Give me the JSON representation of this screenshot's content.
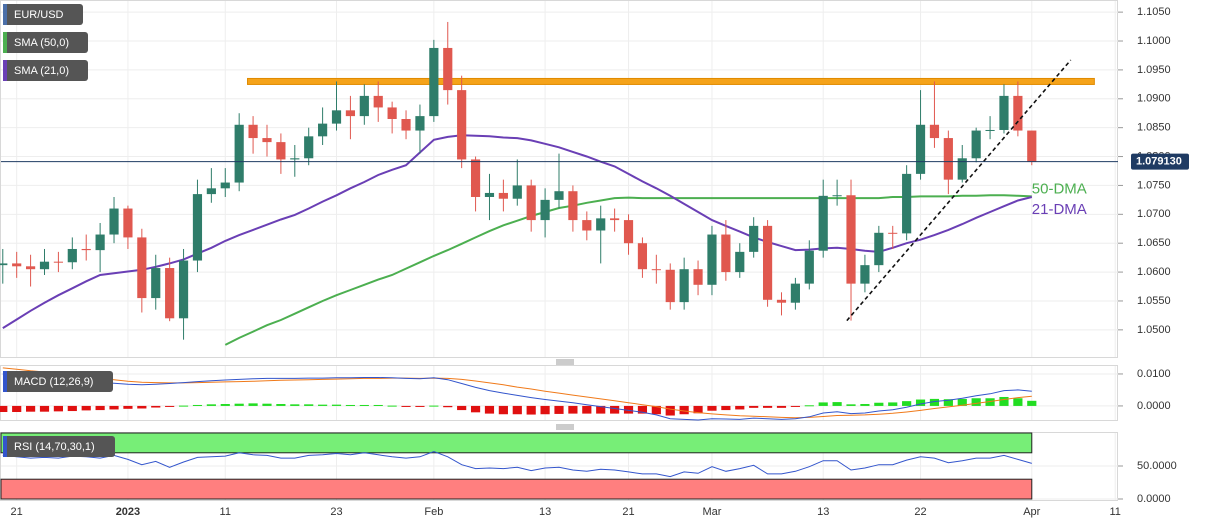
{
  "chart_data": [
    {
      "type": "candlestick",
      "title": "EUR/USD",
      "up_color": "#2f7d6a",
      "down_color": "#e0584f",
      "xlim": [
        -0.2,
        80.2
      ],
      "xticks": [
        {
          "value": 1,
          "label": "21"
        },
        {
          "value": 9,
          "label": "2023"
        },
        {
          "value": 16,
          "label": "11"
        },
        {
          "value": 24,
          "label": "23"
        },
        {
          "value": 31,
          "label": "Feb"
        },
        {
          "value": 39,
          "label": "13"
        },
        {
          "value": 45,
          "label": "21"
        },
        {
          "value": 51,
          "label": "Mar"
        },
        {
          "value": 59,
          "label": "13"
        },
        {
          "value": 66,
          "label": "22"
        },
        {
          "value": 74,
          "label": "Apr"
        },
        {
          "value": 80,
          "label": "11"
        }
      ],
      "ylim": [
        1.0453,
        1.1071
      ],
      "yticks": [
        {
          "value": 1.05,
          "label": "1.0500"
        },
        {
          "value": 1.055,
          "label": "1.0550"
        },
        {
          "value": 1.06,
          "label": "1.0600"
        },
        {
          "value": 1.065,
          "label": "1.0650"
        },
        {
          "value": 1.07,
          "label": "1.0700"
        },
        {
          "value": 1.075,
          "label": "1.0750"
        },
        {
          "value": 1.08,
          "label": "1.0800"
        },
        {
          "value": 1.085,
          "label": "1.0850"
        },
        {
          "value": 1.09,
          "label": "1.0900"
        },
        {
          "value": 1.095,
          "label": "1.0950"
        },
        {
          "value": 1.1,
          "label": "1.1000"
        },
        {
          "value": 1.105,
          "label": "1.1050"
        }
      ],
      "open": [
        1.0612,
        1.0615,
        1.061,
        1.0605,
        1.0618,
        1.0617,
        1.064,
        1.0638,
        1.0665,
        1.071,
        1.066,
        1.0555,
        1.0607,
        1.052,
        1.062,
        1.0735,
        1.0745,
        1.0755,
        1.0855,
        1.0832,
        1.0825,
        1.0795,
        1.0797,
        1.0835,
        1.0857,
        1.088,
        1.087,
        1.0905,
        1.0885,
        1.0865,
        1.0845,
        1.087,
        1.0988,
        1.0915,
        1.0795,
        1.073,
        1.0737,
        1.0727,
        1.075,
        1.069,
        1.0725,
        1.074,
        1.069,
        1.0672,
        1.0693,
        1.069,
        1.065,
        1.0605,
        1.0604,
        1.0548,
        1.0605,
        1.0578,
        1.0665,
        1.06,
        1.0635,
        1.068,
        1.0552,
        1.0547,
        1.058,
        1.0637,
        1.0732,
        1.0733,
        1.058,
        1.0612,
        1.0668,
        1.0667,
        1.077,
        1.0855,
        1.0832,
        1.076,
        1.0797,
        1.0845,
        1.0846,
        1.0905,
        1.0845
      ],
      "high": [
        1.064,
        1.0635,
        1.063,
        1.064,
        1.0635,
        1.066,
        1.0665,
        1.0685,
        1.073,
        1.0715,
        1.0675,
        1.063,
        1.0625,
        1.064,
        1.076,
        1.078,
        1.078,
        1.0875,
        1.087,
        1.0855,
        1.084,
        1.082,
        1.085,
        1.0885,
        1.093,
        1.0905,
        1.0925,
        1.093,
        1.0895,
        1.088,
        1.089,
        1.1002,
        1.1033,
        1.094,
        1.08,
        1.077,
        1.076,
        1.0795,
        1.076,
        1.0745,
        1.0805,
        1.075,
        1.0705,
        1.0715,
        1.071,
        1.07,
        1.066,
        1.063,
        1.0615,
        1.0625,
        1.062,
        1.068,
        1.069,
        1.065,
        1.0695,
        1.069,
        1.0565,
        1.059,
        1.0655,
        1.076,
        1.076,
        1.076,
        1.063,
        1.068,
        1.068,
        1.0785,
        1.0915,
        1.093,
        1.0845,
        1.082,
        1.085,
        1.087,
        1.0925,
        1.093,
        1.0845
      ],
      "low": [
        1.058,
        1.059,
        1.0575,
        1.0595,
        1.06,
        1.0605,
        1.062,
        1.06,
        1.065,
        1.064,
        1.053,
        1.0535,
        1.0515,
        1.0483,
        1.06,
        1.072,
        1.073,
        1.074,
        1.0805,
        1.08,
        1.077,
        1.0765,
        1.0785,
        1.082,
        1.0845,
        1.083,
        1.0855,
        1.086,
        1.084,
        1.083,
        1.0805,
        1.086,
        1.089,
        1.078,
        1.0705,
        1.069,
        1.0705,
        1.0715,
        1.067,
        1.066,
        1.071,
        1.067,
        1.0655,
        1.0615,
        1.067,
        1.063,
        1.059,
        1.058,
        1.0535,
        1.0535,
        1.056,
        1.056,
        1.0585,
        1.059,
        1.0625,
        1.054,
        1.0525,
        1.0535,
        1.057,
        1.0625,
        1.0715,
        1.0516,
        1.0565,
        1.06,
        1.064,
        1.0655,
        1.076,
        1.0815,
        1.0735,
        1.0755,
        1.079,
        1.083,
        1.084,
        1.0835,
        1.0785
      ],
      "close": [
        1.0615,
        1.061,
        1.0605,
        1.0618,
        1.0617,
        1.064,
        1.0638,
        1.0665,
        1.071,
        1.066,
        1.0555,
        1.0607,
        1.052,
        1.062,
        1.0735,
        1.0745,
        1.0755,
        1.0855,
        1.0832,
        1.0825,
        1.0795,
        1.0797,
        1.0835,
        1.0857,
        1.088,
        1.087,
        1.0905,
        1.0885,
        1.0865,
        1.0845,
        1.087,
        1.0988,
        1.0915,
        1.0795,
        1.073,
        1.0737,
        1.0727,
        1.075,
        1.069,
        1.0725,
        1.074,
        1.069,
        1.0672,
        1.0693,
        1.069,
        1.065,
        1.0605,
        1.0604,
        1.0548,
        1.0605,
        1.0578,
        1.0665,
        1.06,
        1.0635,
        1.068,
        1.0552,
        1.0547,
        1.058,
        1.0637,
        1.0732,
        1.0733,
        1.058,
        1.0612,
        1.0668,
        1.0667,
        1.077,
        1.0855,
        1.0832,
        1.076,
        1.0797,
        1.0845,
        1.0846,
        1.0905,
        1.0845,
        1.07913
      ],
      "last_price": {
        "value": 1.07913,
        "label": "1.079130"
      },
      "series": [
        {
          "name": "SMA (50,0)",
          "label": "50-DMA",
          "color": "#4caf50",
          "values": [
            null,
            null,
            null,
            null,
            null,
            null,
            null,
            null,
            null,
            null,
            null,
            null,
            null,
            null,
            null,
            null,
            1.0474,
            1.0486,
            1.0497,
            1.0508,
            1.0517,
            1.0528,
            1.0539,
            1.055,
            1.056,
            1.0569,
            1.0578,
            1.0587,
            1.0595,
            1.0606,
            1.0617,
            1.0628,
            1.0638,
            1.0649,
            1.066,
            1.0671,
            1.0681,
            1.0689,
            1.0697,
            1.0704,
            1.0711,
            1.0715,
            1.072,
            1.0724,
            1.0728,
            1.0729,
            1.0728,
            1.0728,
            1.0728,
            1.0728,
            1.0728,
            1.0728,
            1.0728,
            1.0728,
            1.0728,
            1.0728,
            1.0728,
            1.0728,
            1.0728,
            1.0728,
            1.0728,
            1.0728,
            1.0728,
            1.0728,
            1.073,
            1.073,
            1.0731,
            1.0731,
            1.0731,
            1.0732,
            1.0732,
            1.0733,
            1.0733,
            1.0732,
            1.0731
          ]
        },
        {
          "name": "SMA (21,0)",
          "label": "21-DMA",
          "color": "#6a3fb5",
          "values": [
            1.0503,
            1.0518,
            1.0533,
            1.0547,
            1.056,
            1.0572,
            1.0584,
            1.0595,
            1.0598,
            1.0601,
            1.0604,
            1.0609,
            1.0615,
            1.0622,
            1.0632,
            1.0642,
            1.0654,
            1.0664,
            1.0673,
            1.0682,
            1.0691,
            1.0699,
            1.071,
            1.0722,
            1.0733,
            1.0745,
            1.0756,
            1.0768,
            1.0777,
            1.0785,
            1.0807,
            1.0829,
            1.0834,
            1.0837,
            1.0836,
            1.0835,
            1.0833,
            1.0832,
            1.0828,
            1.0822,
            1.0816,
            1.0808,
            1.08,
            1.0791,
            1.0783,
            1.077,
            1.0757,
            1.0745,
            1.0732,
            1.0718,
            1.0704,
            1.069,
            1.068,
            1.067,
            1.066,
            1.0652,
            1.0645,
            1.0638,
            1.0639,
            1.0641,
            1.0642,
            1.064,
            1.0637,
            1.0635,
            1.0642,
            1.065,
            1.0656,
            1.0664,
            1.0673,
            1.0683,
            1.0694,
            1.0704,
            1.0714,
            1.0724,
            1.073
          ]
        }
      ],
      "resistance": {
        "value": 1.093,
        "start": 17.6,
        "end": 78.5,
        "color": "#f5a31a"
      },
      "trendline": {
        "x": [
          60.7,
          76.8
        ],
        "y": [
          1.0516,
          1.0967
        ],
        "color": "#111111"
      }
    },
    {
      "type": "macd",
      "title": "MACD (12,26,9)",
      "ylim": [
        -0.0044,
        0.0128
      ],
      "yticks": [
        {
          "value": 0,
          "label": "0.0000"
        },
        {
          "value": 0.01,
          "label": "0.0100"
        }
      ],
      "macd_color": "#3355cc",
      "signal_color": "#f07a1a",
      "up_color": "#22dd22",
      "down_color": "#e01010",
      "macd": [
        0.01,
        0.0096,
        0.0092,
        0.0088,
        0.0084,
        0.008,
        0.0077,
        0.0074,
        0.0071,
        0.0068,
        0.0066,
        0.0068,
        0.007,
        0.0073,
        0.0076,
        0.0079,
        0.0081,
        0.0083,
        0.0085,
        0.0086,
        0.0086,
        0.0086,
        0.0087,
        0.0087,
        0.0088,
        0.0088,
        0.0089,
        0.0089,
        0.0088,
        0.0086,
        0.0085,
        0.0088,
        0.0082,
        0.007,
        0.0058,
        0.0048,
        0.004,
        0.0033,
        0.0026,
        0.002,
        0.0015,
        0.001,
        0.0004,
        -0.0002,
        -0.0008,
        -0.0014,
        -0.002,
        -0.0028,
        -0.004,
        -0.0042,
        -0.0044,
        -0.004,
        -0.0041,
        -0.0042,
        -0.0038,
        -0.004,
        -0.0042,
        -0.004,
        -0.0034,
        -0.0022,
        -0.0018,
        -0.0024,
        -0.0022,
        -0.0016,
        -0.0012,
        -0.0004,
        0.0006,
        0.0014,
        0.0018,
        0.0024,
        0.0032,
        0.0038,
        0.0048,
        0.005,
        0.0046
      ],
      "signal": [
        0.0119,
        0.0115,
        0.011,
        0.0106,
        0.0101,
        0.0096,
        0.0091,
        0.0087,
        0.0082,
        0.0077,
        0.0074,
        0.0073,
        0.0072,
        0.0072,
        0.0073,
        0.0074,
        0.0075,
        0.0076,
        0.0077,
        0.0079,
        0.008,
        0.0081,
        0.0082,
        0.0083,
        0.0084,
        0.0085,
        0.0086,
        0.0086,
        0.0087,
        0.0087,
        0.0086,
        0.0087,
        0.0086,
        0.0083,
        0.0078,
        0.0072,
        0.0066,
        0.0059,
        0.0053,
        0.0046,
        0.004,
        0.0034,
        0.0028,
        0.0022,
        0.0016,
        0.001,
        0.0004,
        -0.0002,
        -0.001,
        -0.0016,
        -0.0021,
        -0.0025,
        -0.0028,
        -0.0031,
        -0.0032,
        -0.0034,
        -0.0036,
        -0.0037,
        -0.0036,
        -0.0033,
        -0.003,
        -0.0029,
        -0.0028,
        -0.0026,
        -0.0023,
        -0.0019,
        -0.0014,
        -0.0008,
        -0.0003,
        0.0002,
        0.0008,
        0.0014,
        0.002,
        0.0026,
        0.003
      ],
      "histogram": [
        -0.0019,
        -0.0019,
        -0.0018,
        -0.0018,
        -0.0017,
        -0.0016,
        -0.0014,
        -0.0013,
        -0.0011,
        -0.0009,
        -0.0008,
        -0.0005,
        -0.0002,
        0.0001,
        0.0003,
        0.0005,
        0.0006,
        0.0007,
        0.0008,
        0.0007,
        0.0006,
        0.0005,
        0.0005,
        0.0004,
        0.0004,
        0.0003,
        0.0003,
        0.0003,
        0.0001,
        -0.0001,
        -0.0001,
        0.0001,
        -0.0004,
        -0.0013,
        -0.002,
        -0.0024,
        -0.0026,
        -0.0026,
        -0.0027,
        -0.0026,
        -0.0025,
        -0.0024,
        -0.0024,
        -0.0024,
        -0.0024,
        -0.0024,
        -0.0024,
        -0.0026,
        -0.003,
        -0.0026,
        -0.0023,
        -0.0015,
        -0.0013,
        -0.0011,
        -0.0006,
        -0.0006,
        -0.0006,
        -0.0003,
        0.0002,
        0.0011,
        0.0012,
        0.0005,
        0.0006,
        0.001,
        0.0011,
        0.0015,
        0.002,
        0.0022,
        0.0021,
        0.0022,
        0.0024,
        0.0024,
        0.0028,
        0.0024,
        0.0016
      ]
    },
    {
      "type": "rsi",
      "title": "RSI (14,70,30,1)",
      "ylim": [
        -1.5,
        101.5
      ],
      "yticks": [
        {
          "value": 0,
          "label": "0.0000"
        },
        {
          "value": 50,
          "label": "50.0000"
        }
      ],
      "upper": 70,
      "lower": 30,
      "upper_color": "#77ee77",
      "lower_color": "#ff7f7f",
      "color": "#3355cc",
      "values": [
        66,
        64,
        62,
        63,
        62,
        65,
        64,
        62,
        66,
        60,
        52,
        57,
        48,
        56,
        63,
        64,
        65,
        70,
        67,
        66,
        62,
        62,
        66,
        67,
        69,
        67,
        70,
        67,
        64,
        62,
        64,
        72,
        64,
        52,
        46,
        47,
        46,
        48,
        43,
        47,
        48,
        44,
        42,
        45,
        44,
        41,
        38,
        38,
        34,
        41,
        39,
        49,
        42,
        46,
        51,
        38,
        38,
        42,
        49,
        58,
        58,
        44,
        47,
        52,
        52,
        59,
        64,
        62,
        55,
        58,
        62,
        62,
        66,
        60,
        54
      ]
    }
  ]
}
